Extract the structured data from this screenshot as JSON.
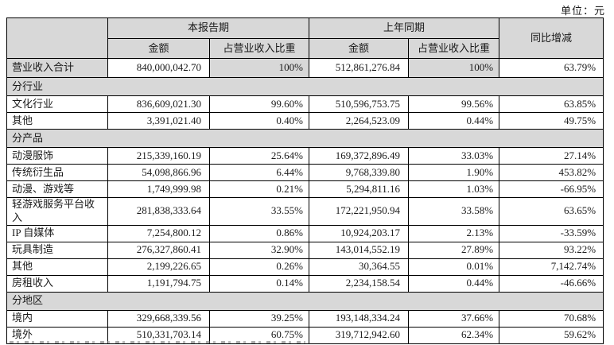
{
  "unit_label": "单位：元",
  "colors": {
    "header_bg": "#d8d8d8",
    "border": "#000000",
    "text": "#1a1a1a"
  },
  "table": {
    "header": {
      "current_period": "本报告期",
      "prior_period": "上年同期",
      "yoy_change": "同比增减",
      "sub_amount": "金额",
      "sub_ratio": "占营业收入比重"
    },
    "rows": [
      {
        "type": "data",
        "highlight": true,
        "label": "营业收入合计",
        "cells": [
          "840,000,042.70",
          "100%",
          "512,861,276.84",
          "100%",
          "63.79%"
        ]
      },
      {
        "type": "section",
        "label": "分行业"
      },
      {
        "type": "data",
        "label": "文化行业",
        "cells": [
          "836,609,021.30",
          "99.60%",
          "510,596,753.75",
          "99.56%",
          "63.85%"
        ]
      },
      {
        "type": "data",
        "label": "其他",
        "cells": [
          "3,391,021.40",
          "0.40%",
          "2,264,523.09",
          "0.44%",
          "49.75%"
        ]
      },
      {
        "type": "section",
        "label": "分产品"
      },
      {
        "type": "data",
        "label": "动漫服饰",
        "cells": [
          "215,339,160.19",
          "25.64%",
          "169,372,896.49",
          "33.03%",
          "27.14%"
        ]
      },
      {
        "type": "data",
        "label": "传统衍生品",
        "cells": [
          "54,098,866.96",
          "6.44%",
          "9,768,339.80",
          "1.90%",
          "453.82%"
        ]
      },
      {
        "type": "data",
        "label": "动漫、游戏等",
        "cells": [
          "1,749,999.98",
          "0.21%",
          "5,294,811.16",
          "1.03%",
          "-66.95%"
        ]
      },
      {
        "type": "data",
        "label": "轻游戏服务平台收入",
        "cells": [
          "281,838,333.64",
          "33.55%",
          "172,221,950.94",
          "33.58%",
          "63.65%"
        ]
      },
      {
        "type": "data",
        "label": "IP 自媒体",
        "cells": [
          "7,254,800.12",
          "0.86%",
          "10,924,203.17",
          "2.13%",
          "-33.59%"
        ]
      },
      {
        "type": "data",
        "label": "玩具制造",
        "cells": [
          "276,327,860.41",
          "32.90%",
          "143,014,552.19",
          "27.89%",
          "93.22%"
        ]
      },
      {
        "type": "data",
        "label": "其他",
        "cells": [
          "2,199,226.65",
          "0.26%",
          "30,364.55",
          "0.01%",
          "7,142.74%"
        ]
      },
      {
        "type": "data",
        "label": "房租收入",
        "cells": [
          "1,191,794.75",
          "0.14%",
          "2,234,158.54",
          "0.44%",
          "-46.66%"
        ]
      },
      {
        "type": "section",
        "label": "分地区"
      },
      {
        "type": "data",
        "label": "境内",
        "cells": [
          "329,668,339.56",
          "39.25%",
          "193,148,334.24",
          "37.66%",
          "70.68%"
        ]
      },
      {
        "type": "data",
        "label": "境外",
        "cells": [
          "510,331,703.14",
          "60.75%",
          "319,712,942.60",
          "62.34%",
          "59.62%"
        ]
      }
    ]
  }
}
